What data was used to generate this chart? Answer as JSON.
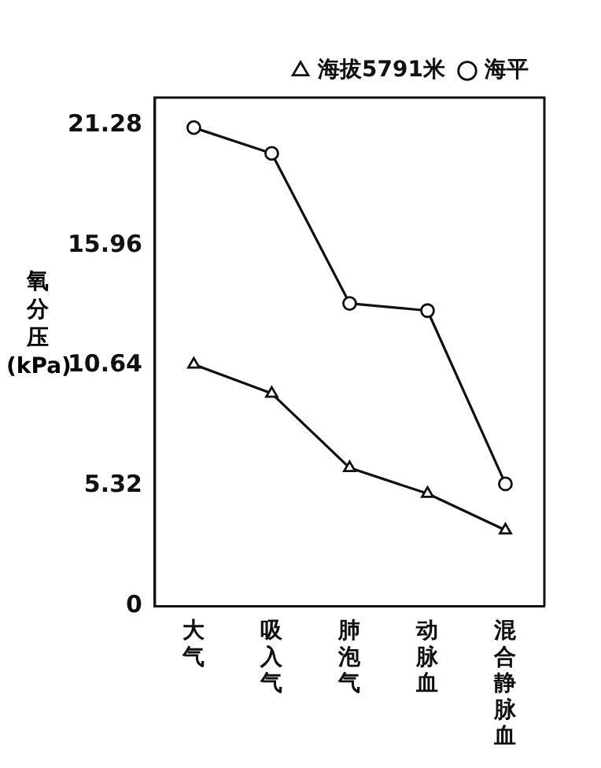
{
  "chart_data": {
    "type": "line",
    "ylabel": "氧分压(kPa)",
    "categories": [
      "大气",
      "吸入气",
      "肺泡气",
      "动脉血",
      "混合静脉血"
    ],
    "series": [
      {
        "name": "海拔5791米",
        "color": "#111111",
        "marker": "triangle",
        "values": [
          10.69,
          9.4,
          6.11,
          4.97,
          3.35
        ]
      },
      {
        "name": "海平",
        "color": "#111111",
        "marker": "circle",
        "values": [
          21.17,
          20.03,
          13.39,
          13.07,
          5.4
        ]
      }
    ],
    "ylim": [
      0,
      22.5
    ],
    "yticks": [
      0,
      5.32,
      10.64,
      15.96,
      21.28
    ],
    "grid": false,
    "legend": "top right",
    "line_style": "solid"
  }
}
